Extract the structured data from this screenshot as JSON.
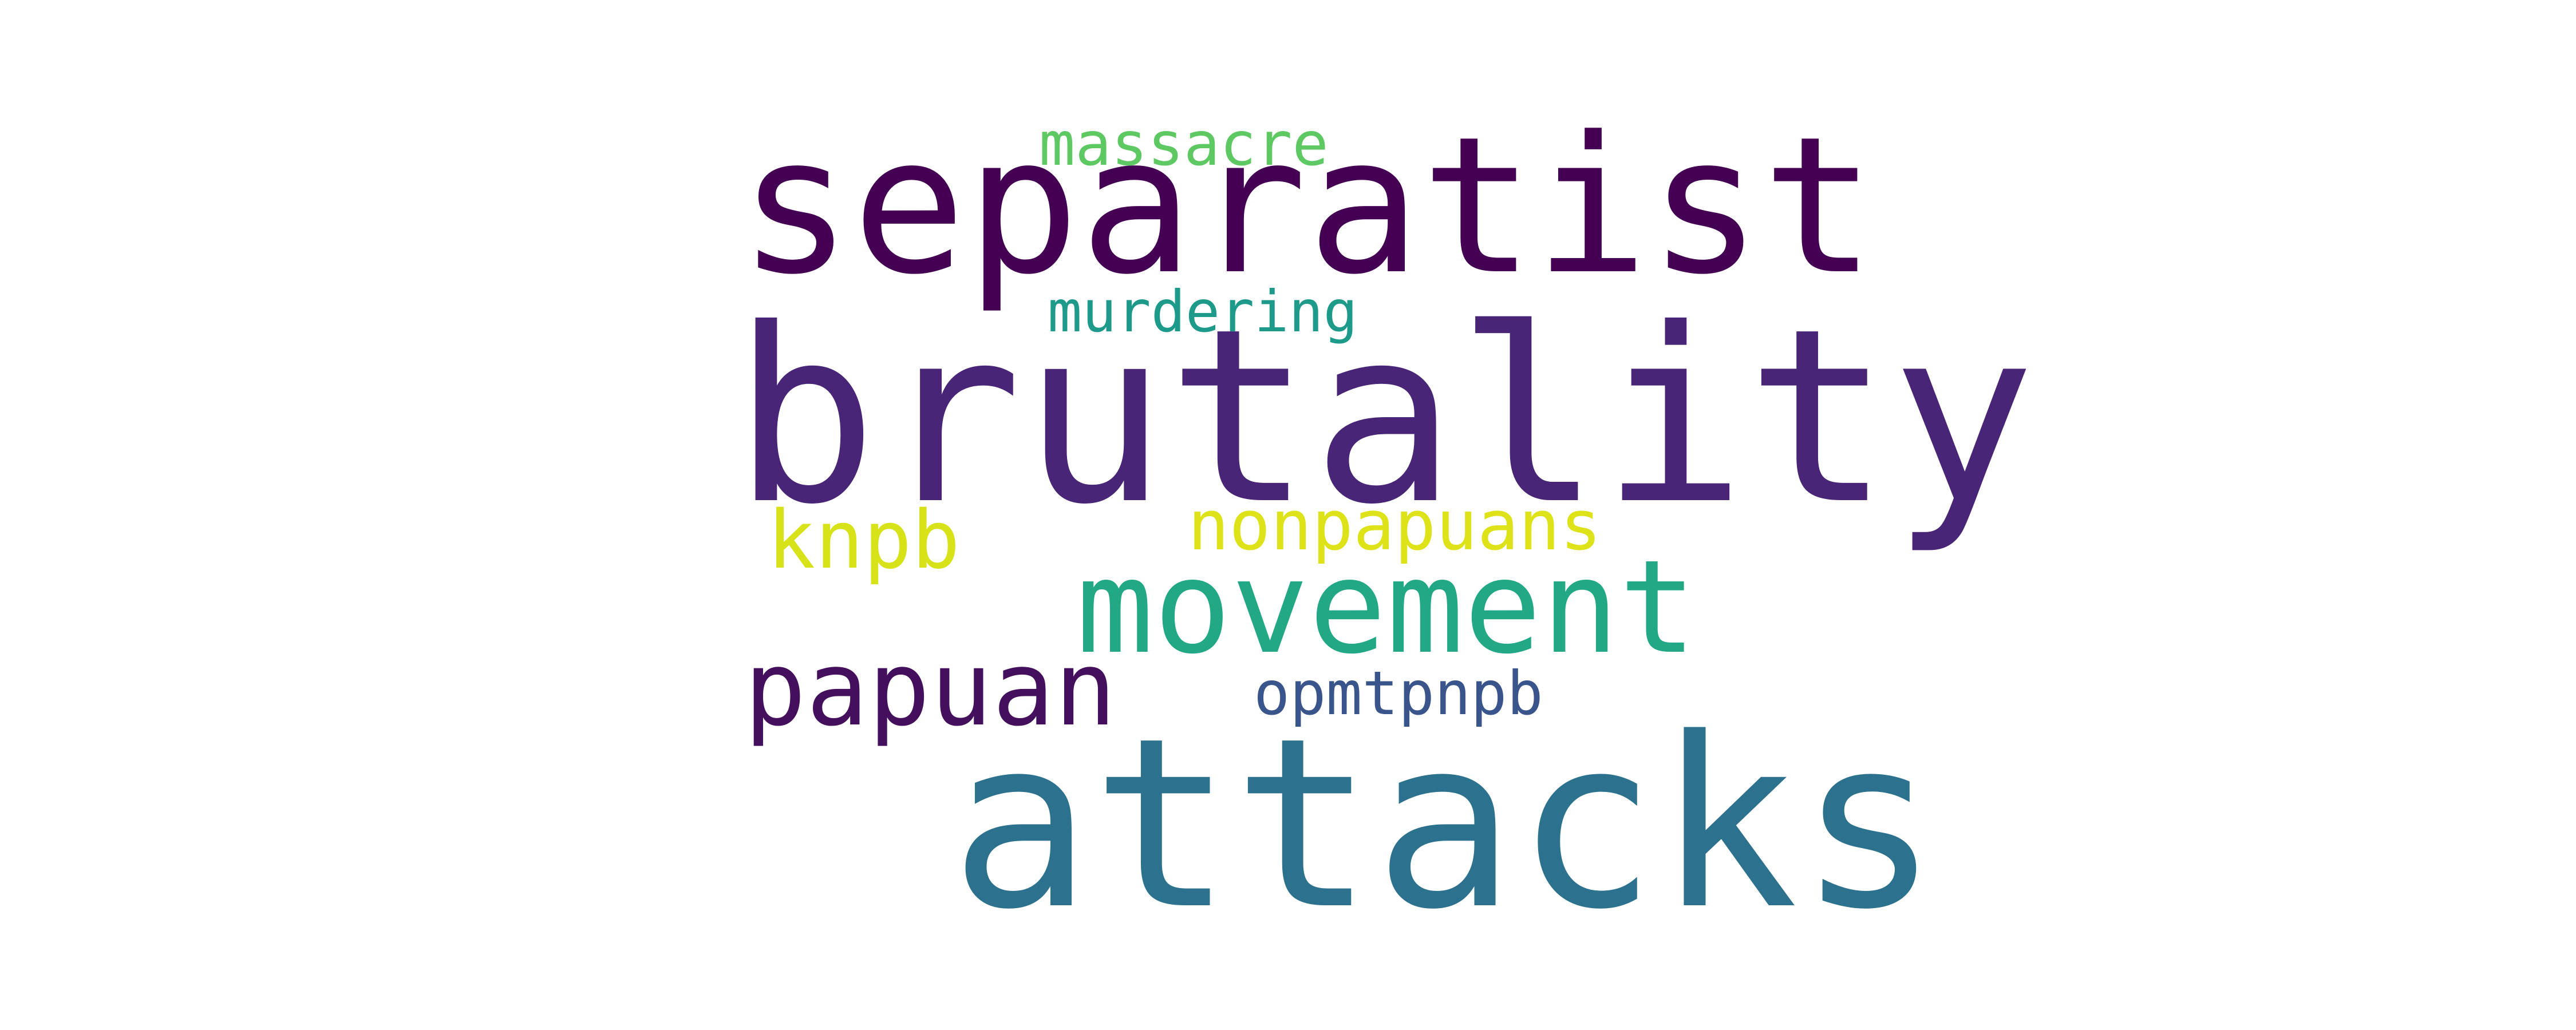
{
  "cloud": {
    "words": [
      {
        "id": "separatist",
        "text": "separatist",
        "color": "#440154"
      },
      {
        "id": "brutality",
        "text": "brutality",
        "color": "#482576"
      },
      {
        "id": "attacks",
        "text": "attacks",
        "color": "#2C728E"
      },
      {
        "id": "movement",
        "text": "movement",
        "color": "#22A884"
      },
      {
        "id": "papuan",
        "text": "papuan",
        "color": "#440F5C"
      },
      {
        "id": "nonpapuans",
        "text": "nonpapuans",
        "color": "#DDE318"
      },
      {
        "id": "knpb",
        "text": "knpb",
        "color": "#D8E219"
      },
      {
        "id": "opmtpnpb",
        "text": "opmtpnpb",
        "color": "#3A548C"
      },
      {
        "id": "massacre",
        "text": "massacre",
        "color": "#5EC962"
      },
      {
        "id": "murdering",
        "text": "murdering",
        "color": "#1E9A8A"
      }
    ]
  }
}
